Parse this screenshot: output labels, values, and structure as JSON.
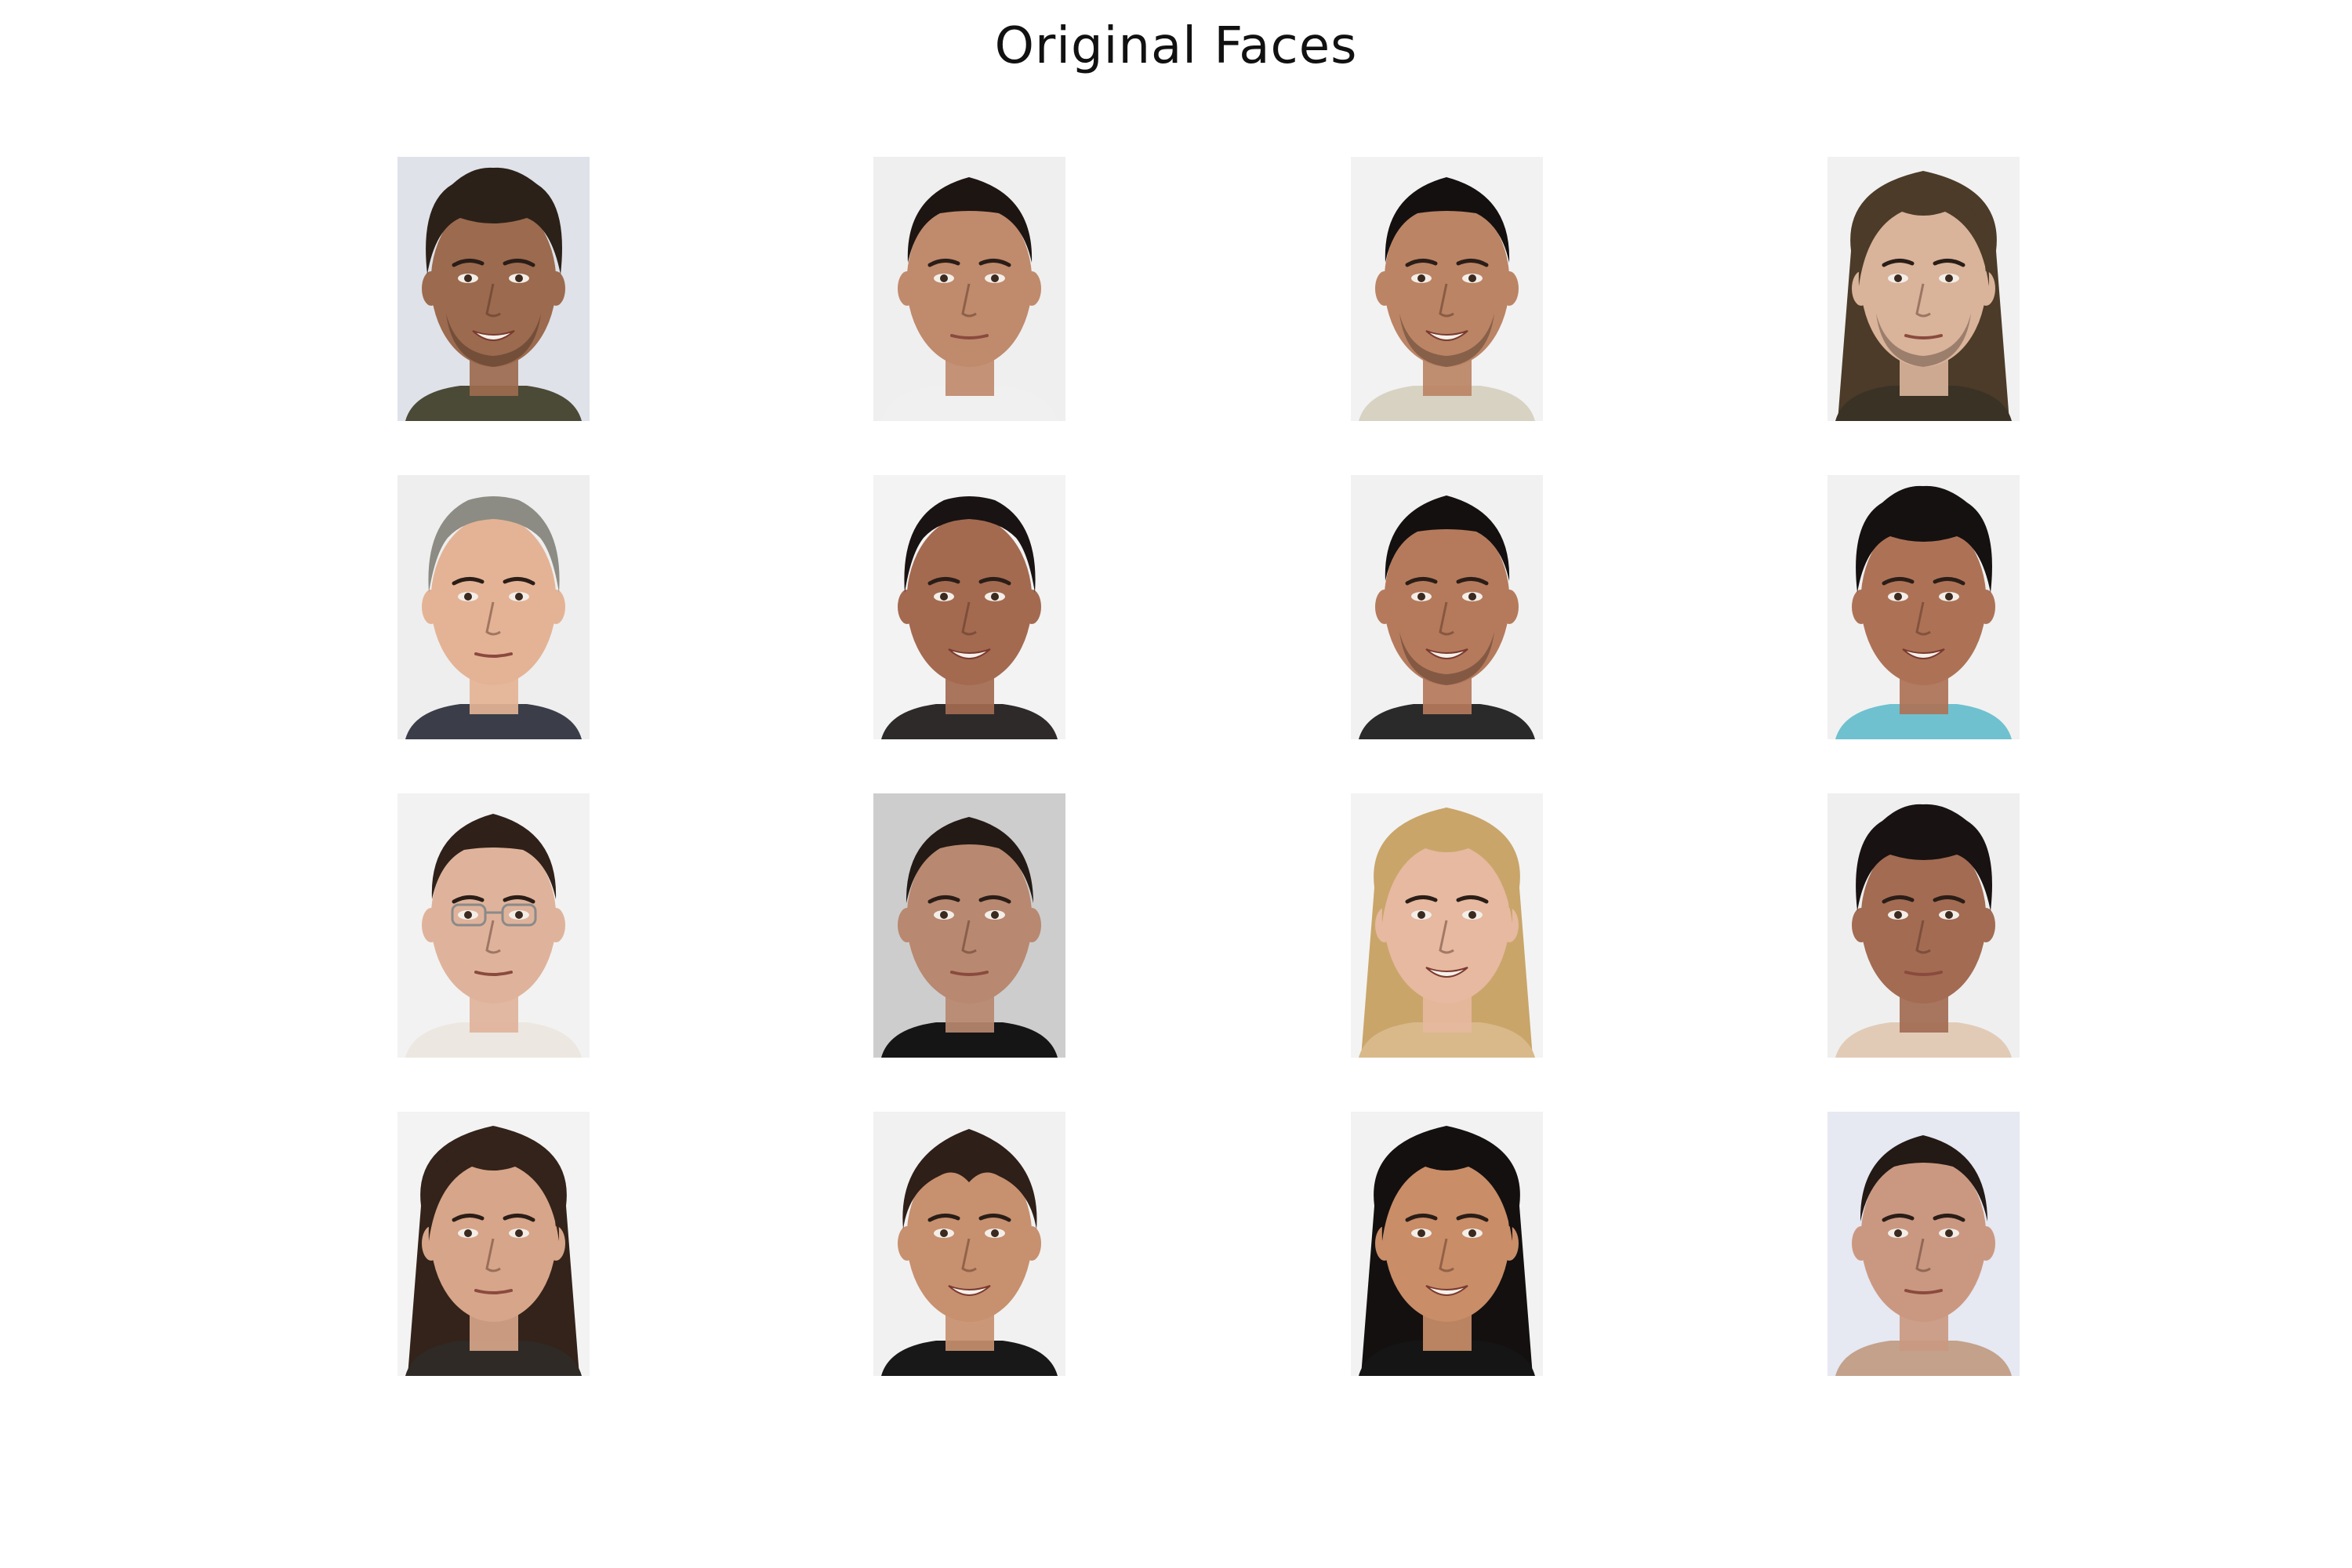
{
  "figure": {
    "title": "Original Faces"
  },
  "faces": [
    {
      "subject": "man-curly-dark-hair-smiling",
      "skin": "#9c6a4e",
      "hair": "#2b2119",
      "hair_style": "curly",
      "clothing": "#4a4a36",
      "background": "#dfe2e8",
      "smile": true,
      "glasses": false,
      "beard": true
    },
    {
      "subject": "man-short-black-hair-neutral",
      "skin": "#c08a6c",
      "hair": "#1d1512",
      "hair_style": "short",
      "clothing": "#f0f0f0",
      "background": "#efefef",
      "smile": false,
      "glasses": false,
      "beard": false
    },
    {
      "subject": "man-short-black-hair-slight-smile",
      "skin": "#bb8465",
      "hair": "#151010",
      "hair_style": "short",
      "clothing": "#d8d2c3",
      "background": "#f2f2f2",
      "smile": true,
      "glasses": false,
      "beard": true
    },
    {
      "subject": "man-long-hair-neutral",
      "skin": "#d9b39a",
      "hair": "#4b3b28",
      "hair_style": "long",
      "clothing": "#3b3226",
      "background": "#f1f1f1",
      "smile": false,
      "glasses": false,
      "beard": true
    },
    {
      "subject": "older-man-gray-hair",
      "skin": "#e4b395",
      "hair": "#8c8c84",
      "hair_style": "receding",
      "clothing": "#3b3e48",
      "background": "#eeeeee",
      "smile": false,
      "glasses": false,
      "beard": false
    },
    {
      "subject": "man-receding-black-hair",
      "skin": "#a36a50",
      "hair": "#191313",
      "hair_style": "receding",
      "clothing": "#2e2a2a",
      "background": "#f3f3f3",
      "smile": true,
      "glasses": false,
      "beard": false
    },
    {
      "subject": "man-short-black-hair-big-smile",
      "skin": "#b57a5c",
      "hair": "#141010",
      "hair_style": "short",
      "clothing": "#2a2a2a",
      "background": "#f1f1f1",
      "smile": true,
      "glasses": false,
      "beard": true
    },
    {
      "subject": "man-curly-black-hair-slight-smile",
      "skin": "#ad7256",
      "hair": "#161111",
      "hair_style": "curly",
      "clothing": "#6fc1cf",
      "background": "#f1f1f1",
      "smile": true,
      "glasses": false,
      "beard": false
    },
    {
      "subject": "young-man-glasses",
      "skin": "#dfb39b",
      "hair": "#2f2119",
      "hair_style": "short",
      "clothing": "#ece7e0",
      "background": "#f2f2f2",
      "smile": false,
      "glasses": true,
      "beard": false
    },
    {
      "subject": "woman-hair-tied-back",
      "skin": "#b88870",
      "hair": "#231a15",
      "hair_style": "tied",
      "clothing": "#151515",
      "background": "#cdcdcd",
      "smile": false,
      "glasses": false,
      "beard": false
    },
    {
      "subject": "woman-blonde-long-hair",
      "skin": "#e6b9a0",
      "hair": "#c9a56a",
      "hair_style": "long",
      "clothing": "#d9b98a",
      "background": "#f3f3f3",
      "smile": true,
      "glasses": false,
      "beard": false
    },
    {
      "subject": "man-curly-black-hair-neutral",
      "skin": "#a26b52",
      "hair": "#181212",
      "hair_style": "curly",
      "clothing": "#e1cbb7",
      "background": "#efefef",
      "smile": false,
      "glasses": false,
      "beard": false
    },
    {
      "subject": "woman-long-dark-hair-neutral",
      "skin": "#d7a589",
      "hair": "#33231a",
      "hair_style": "long",
      "clothing": "#2f2a26",
      "background": "#f3f3f3",
      "smile": false,
      "glasses": false,
      "beard": false
    },
    {
      "subject": "young-man-wavy-hair-smiling",
      "skin": "#c7906f",
      "hair": "#2e1f18",
      "hair_style": "wavy",
      "clothing": "#181818",
      "background": "#f1f1f1",
      "smile": true,
      "glasses": false,
      "beard": false
    },
    {
      "subject": "woman-long-black-hair-big-smile",
      "skin": "#c98d68",
      "hair": "#141010",
      "hair_style": "long",
      "clothing": "#151515",
      "background": "#f2f2f2",
      "smile": true,
      "glasses": false,
      "beard": false
    },
    {
      "subject": "woman-hair-pulled-back",
      "skin": "#ca9881",
      "hair": "#231915",
      "hair_style": "tied",
      "clothing": "#c3a18a",
      "background": "#e6e8f2",
      "smile": false,
      "glasses": false,
      "beard": false
    }
  ]
}
